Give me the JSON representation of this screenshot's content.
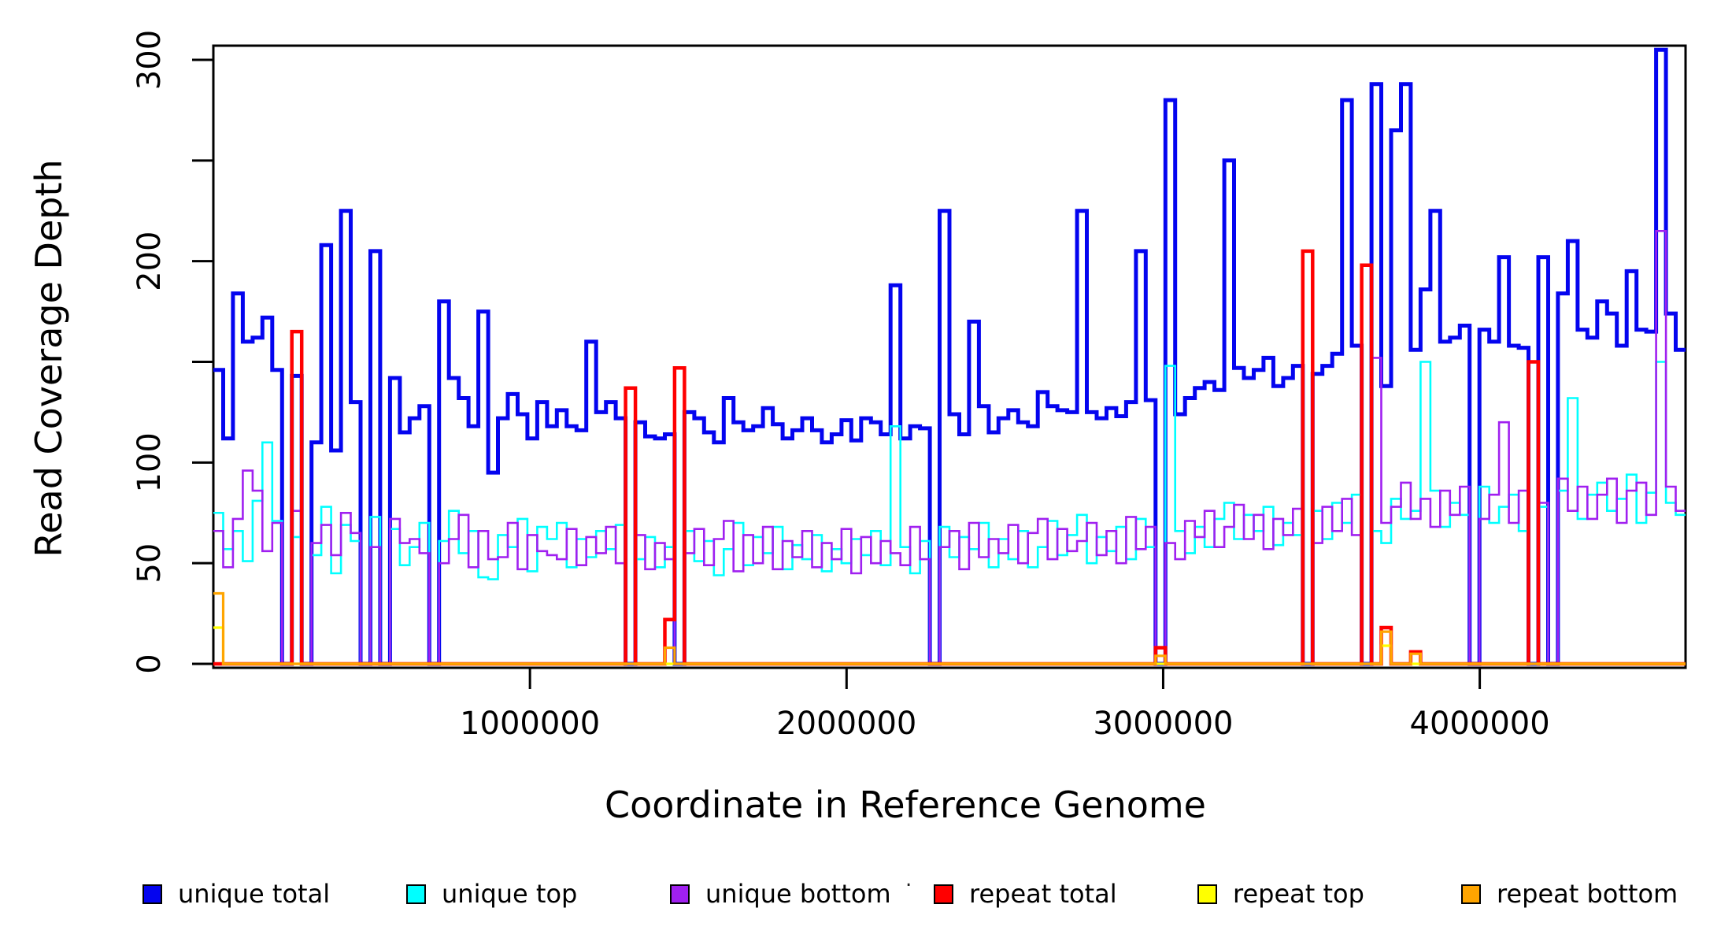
{
  "figure": {
    "background": "#ffffff"
  },
  "chart_data": {
    "type": "line",
    "subtype": "step",
    "title": "",
    "xlabel": "Coordinate in Reference Genome",
    "ylabel": "Read Coverage Depth",
    "xlim": [
      0,
      4650000
    ],
    "ylim": [
      0,
      307
    ],
    "bin_size": 31000,
    "grid": false,
    "legend_position": "bottom",
    "x_ticks": [
      {
        "value": 1000000,
        "label": "1000000"
      },
      {
        "value": 2000000,
        "label": "2000000"
      },
      {
        "value": 3000000,
        "label": "3000000"
      },
      {
        "value": 4000000,
        "label": "4000000"
      }
    ],
    "y_ticks": [
      {
        "value": 0,
        "label": "0"
      },
      {
        "value": 50,
        "label": "50"
      },
      {
        "value": 100,
        "label": "100"
      },
      {
        "value": 150,
        "label": ""
      },
      {
        "value": 200,
        "label": "200"
      },
      {
        "value": 250,
        "label": ""
      },
      {
        "value": 300,
        "label": "300"
      }
    ],
    "stray_mark": ".",
    "series": [
      {
        "name": "unique total",
        "color": "#0404ef",
        "line_width": 5,
        "values": [
          146,
          112,
          184,
          160,
          162,
          172,
          146,
          0,
          143,
          0,
          110,
          208,
          106,
          225,
          130,
          0,
          205,
          0,
          142,
          115,
          122,
          128,
          0,
          180,
          142,
          132,
          118,
          175,
          95,
          122,
          134,
          124,
          112,
          130,
          118,
          126,
          118,
          116,
          160,
          125,
          130,
          122,
          0,
          120,
          113,
          112,
          114,
          0,
          125,
          122,
          115,
          110,
          132,
          120,
          116,
          118,
          127,
          119,
          112,
          116,
          122,
          116,
          110,
          114,
          121,
          111,
          122,
          120,
          114,
          188,
          112,
          118,
          117,
          0,
          225,
          124,
          114,
          170,
          128,
          115,
          122,
          126,
          120,
          118,
          135,
          128,
          126,
          125,
          225,
          125,
          122,
          127,
          123,
          130,
          205,
          131,
          0,
          280,
          124,
          132,
          137,
          140,
          136,
          250,
          147,
          142,
          146,
          152,
          138,
          142,
          148,
          0,
          144,
          148,
          154,
          280,
          158,
          0,
          288,
          138,
          265,
          288,
          156,
          186,
          225,
          160,
          162,
          168,
          0,
          166,
          160,
          202,
          158,
          157,
          0,
          202,
          0,
          184,
          210,
          166,
          162,
          180,
          174,
          158,
          195,
          166,
          165,
          305,
          174,
          156
        ]
      },
      {
        "name": "unique top",
        "color": "#00ffff",
        "line_width": 2.6,
        "values": [
          75,
          57,
          66,
          51,
          81,
          110,
          71,
          0,
          63,
          0,
          54,
          78,
          45,
          69,
          61,
          0,
          73,
          0,
          67,
          49,
          58,
          70,
          0,
          61,
          76,
          55,
          66,
          43,
          42,
          64,
          58,
          72,
          46,
          68,
          62,
          70,
          48,
          62,
          53,
          66,
          57,
          69,
          0,
          52,
          63,
          48,
          58,
          0,
          66,
          51,
          61,
          44,
          57,
          70,
          49,
          63,
          55,
          68,
          47,
          59,
          52,
          64,
          46,
          57,
          50,
          62,
          54,
          66,
          49,
          118,
          58,
          45,
          61,
          0,
          68,
          53,
          63,
          57,
          70,
          48,
          62,
          52,
          66,
          48,
          58,
          71,
          54,
          64,
          74,
          50,
          63,
          56,
          68,
          52,
          72,
          58,
          0,
          148,
          66,
          55,
          68,
          58,
          72,
          80,
          62,
          74,
          66,
          78,
          59,
          70,
          64,
          0,
          76,
          62,
          80,
          70,
          84,
          0,
          66,
          60,
          82,
          72,
          76,
          150,
          86,
          68,
          80,
          74,
          0,
          88,
          70,
          78,
          84,
          66,
          0,
          78,
          0,
          86,
          132,
          72,
          84,
          90,
          76,
          82,
          94,
          70,
          85,
          150,
          80,
          74
        ]
      },
      {
        "name": "unique bottom",
        "color": "#a020f0",
        "line_width": 2.6,
        "values": [
          66,
          48,
          72,
          96,
          86,
          56,
          70,
          0,
          76,
          0,
          60,
          69,
          54,
          75,
          65,
          0,
          58,
          0,
          72,
          60,
          62,
          55,
          0,
          50,
          62,
          74,
          48,
          66,
          52,
          53,
          70,
          47,
          64,
          56,
          54,
          52,
          67,
          49,
          63,
          55,
          68,
          50,
          0,
          64,
          47,
          60,
          52,
          0,
          55,
          67,
          49,
          62,
          71,
          46,
          64,
          50,
          68,
          47,
          61,
          53,
          66,
          48,
          60,
          52,
          67,
          45,
          63,
          50,
          61,
          55,
          49,
          68,
          52,
          0,
          58,
          66,
          47,
          70,
          53,
          62,
          55,
          69,
          50,
          65,
          72,
          52,
          67,
          56,
          61,
          70,
          54,
          66,
          50,
          73,
          57,
          68,
          0,
          60,
          52,
          71,
          63,
          76,
          58,
          68,
          79,
          62,
          74,
          57,
          72,
          64,
          77,
          0,
          60,
          78,
          66,
          82,
          64,
          0,
          152,
          70,
          78,
          90,
          72,
          82,
          68,
          86,
          74,
          88,
          0,
          72,
          84,
          120,
          70,
          86,
          0,
          80,
          0,
          92,
          76,
          88,
          72,
          84,
          92,
          70,
          86,
          90,
          74,
          215,
          88,
          76
        ]
      },
      {
        "name": "repeat total",
        "color": "#ff0000",
        "line_width": 4.5,
        "values": [
          0,
          0,
          0,
          0,
          0,
          0,
          0,
          0,
          165,
          0,
          0,
          0,
          0,
          0,
          0,
          0,
          0,
          0,
          0,
          0,
          0,
          0,
          0,
          0,
          0,
          0,
          0,
          0,
          0,
          0,
          0,
          0,
          0,
          0,
          0,
          0,
          0,
          0,
          0,
          0,
          0,
          0,
          137,
          0,
          0,
          0,
          22,
          147,
          0,
          0,
          0,
          0,
          0,
          0,
          0,
          0,
          0,
          0,
          0,
          0,
          0,
          0,
          0,
          0,
          0,
          0,
          0,
          0,
          0,
          0,
          0,
          0,
          0,
          0,
          0,
          0,
          0,
          0,
          0,
          0,
          0,
          0,
          0,
          0,
          0,
          0,
          0,
          0,
          0,
          0,
          0,
          0,
          0,
          0,
          0,
          0,
          8,
          0,
          0,
          0,
          0,
          0,
          0,
          0,
          0,
          0,
          0,
          0,
          0,
          0,
          0,
          205,
          0,
          0,
          0,
          0,
          0,
          198,
          0,
          18,
          0,
          0,
          6,
          0,
          0,
          0,
          0,
          0,
          0,
          0,
          0,
          0,
          0,
          0,
          150,
          0,
          0,
          0,
          0,
          0,
          0,
          0,
          0,
          0,
          0,
          0,
          0,
          0,
          0,
          0
        ]
      },
      {
        "name": "repeat top",
        "color": "#ffff00",
        "line_width": 3.2,
        "values": [
          18,
          0,
          0,
          0,
          0,
          0,
          0,
          0,
          0,
          0,
          0,
          0,
          0,
          0,
          0,
          0,
          0,
          0,
          0,
          0,
          0,
          0,
          0,
          0,
          0,
          0,
          0,
          0,
          0,
          0,
          0,
          0,
          0,
          0,
          0,
          0,
          0,
          0,
          0,
          0,
          0,
          0,
          0,
          0,
          0,
          0,
          0,
          0,
          0,
          0,
          0,
          0,
          0,
          0,
          0,
          0,
          0,
          0,
          0,
          0,
          0,
          0,
          0,
          0,
          0,
          0,
          0,
          0,
          0,
          0,
          0,
          0,
          0,
          0,
          0,
          0,
          0,
          0,
          0,
          0,
          0,
          0,
          0,
          0,
          0,
          0,
          0,
          0,
          0,
          0,
          0,
          0,
          0,
          0,
          0,
          0,
          0,
          0,
          0,
          0,
          0,
          0,
          0,
          0,
          0,
          0,
          0,
          0,
          0,
          0,
          0,
          0,
          0,
          0,
          0,
          0,
          0,
          0,
          0,
          9,
          0,
          0,
          0,
          0,
          0,
          0,
          0,
          0,
          0,
          0,
          0,
          0,
          0,
          0,
          0,
          0,
          0,
          0,
          0,
          0,
          0,
          0,
          0,
          0,
          0,
          0,
          0,
          0,
          0,
          0
        ]
      },
      {
        "name": "repeat bottom",
        "color": "#ffa500",
        "line_width": 3.2,
        "values": [
          35,
          0,
          0,
          0,
          0,
          0,
          0,
          0,
          0,
          0,
          0,
          0,
          0,
          0,
          0,
          0,
          0,
          0,
          0,
          0,
          0,
          0,
          0,
          0,
          0,
          0,
          0,
          0,
          0,
          0,
          0,
          0,
          0,
          0,
          0,
          0,
          0,
          0,
          0,
          0,
          0,
          0,
          0,
          0,
          0,
          0,
          8,
          0,
          0,
          0,
          0,
          0,
          0,
          0,
          0,
          0,
          0,
          0,
          0,
          0,
          0,
          0,
          0,
          0,
          0,
          0,
          0,
          0,
          0,
          0,
          0,
          0,
          0,
          0,
          0,
          0,
          0,
          0,
          0,
          0,
          0,
          0,
          0,
          0,
          0,
          0,
          0,
          0,
          0,
          0,
          0,
          0,
          0,
          0,
          0,
          0,
          4,
          0,
          0,
          0,
          0,
          0,
          0,
          0,
          0,
          0,
          0,
          0,
          0,
          0,
          0,
          0,
          0,
          0,
          0,
          0,
          0,
          0,
          0,
          16,
          0,
          0,
          5,
          0,
          0,
          0,
          0,
          0,
          0,
          0,
          0,
          0,
          0,
          0,
          0,
          0,
          0,
          0,
          0,
          0,
          0,
          0,
          0,
          0,
          0,
          0,
          0,
          0,
          0,
          0
        ]
      }
    ]
  }
}
